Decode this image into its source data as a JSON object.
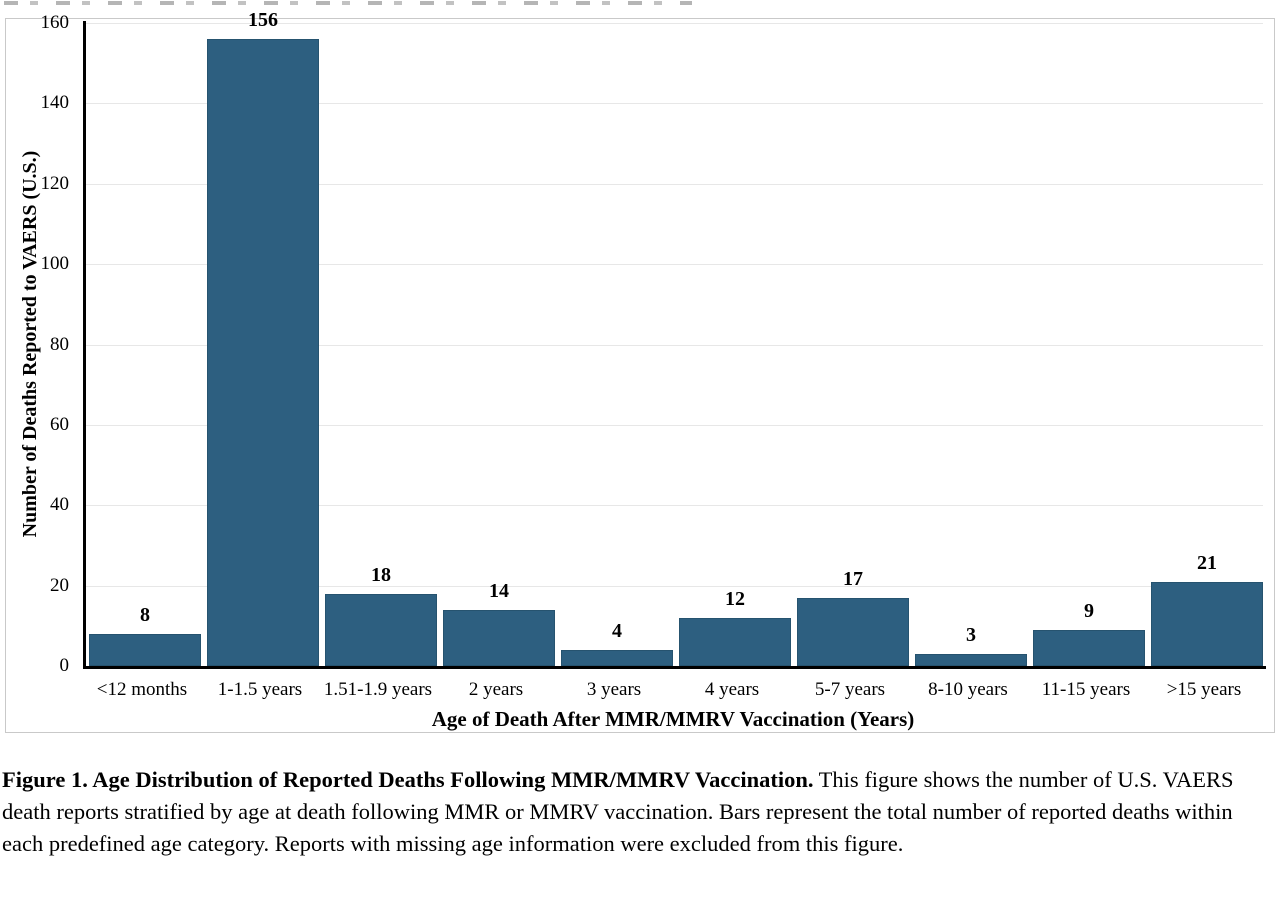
{
  "chart_data": {
    "type": "bar",
    "title": "",
    "categories": [
      "<12 months",
      "1-1.5 years",
      "1.51-1.9 years",
      "2 years",
      "3 years",
      "4 years",
      "5-7 years",
      "8-10 years",
      "11-15 years",
      ">15 years"
    ],
    "values": [
      8,
      156,
      18,
      14,
      4,
      12,
      17,
      3,
      9,
      21
    ],
    "xlabel": "Age of Death After MMR/MMRV Vaccination (Years)",
    "ylabel": "Number of Deaths Reported to VAERS (U.S.)",
    "ylim": [
      0,
      160
    ],
    "ytick_interval": 20,
    "grid": true,
    "legend": "none",
    "bar_color": "#2d5f80",
    "bar_value_labels_shown": true
  },
  "caption": {
    "bold": "Figure 1. Age Distribution of Reported Deaths Following MMR/MMRV Vaccination.",
    "text": " This figure shows the number of U.S. VAERS death reports stratified by age at death following MMR or MMRV vaccination. Bars represent the total number of reported deaths within each predefined age category. Reports with missing age information were excluded from this figure."
  }
}
